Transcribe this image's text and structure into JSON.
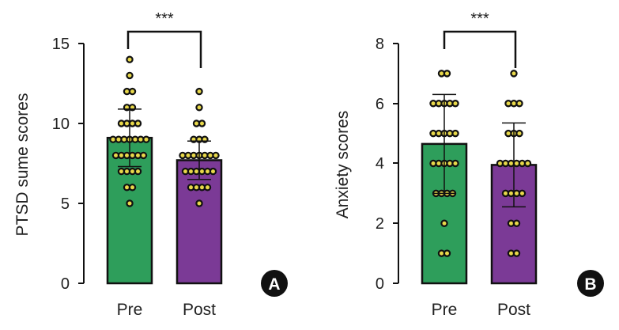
{
  "chart_data": [
    {
      "type": "bar",
      "panel": "A",
      "categories": [
        "Pre",
        "Post"
      ],
      "values": [
        9.1,
        7.7
      ],
      "error": [
        1.8,
        1.2
      ],
      "colors": [
        "#2e9e5b",
        "#7b3a96"
      ],
      "ylabel": "PTSD sume scores",
      "xlabel": "",
      "ylim": [
        0,
        15
      ],
      "yticks": [
        0,
        5,
        10,
        15
      ],
      "significance": "***",
      "points": [
        [
          5,
          6,
          6,
          7,
          7,
          7,
          7,
          8,
          8,
          8,
          8,
          8,
          8,
          9,
          9,
          9,
          9,
          9,
          9,
          9,
          10,
          10,
          10,
          10,
          11,
          11,
          12,
          12,
          13,
          14
        ],
        [
          5,
          6,
          6,
          6,
          6,
          7,
          7,
          7,
          7,
          7,
          7,
          8,
          8,
          8,
          8,
          8,
          8,
          8,
          9,
          9,
          9,
          10,
          10,
          11,
          12
        ]
      ]
    },
    {
      "type": "bar",
      "panel": "B",
      "categories": [
        "Pre",
        "Post"
      ],
      "values": [
        4.65,
        3.95
      ],
      "error": [
        1.65,
        1.4
      ],
      "colors": [
        "#2e9e5b",
        "#7b3a96"
      ],
      "ylabel": "Anxiety scores",
      "xlabel": "",
      "ylim": [
        0,
        8
      ],
      "yticks": [
        0,
        2,
        4,
        6,
        8
      ],
      "significance": "***",
      "points": [
        [
          1,
          1,
          2,
          3,
          3,
          3,
          3,
          4,
          4,
          4,
          4,
          4,
          5,
          5,
          5,
          5,
          5,
          6,
          6,
          6,
          6,
          6,
          7,
          7
        ],
        [
          1,
          1,
          2,
          2,
          3,
          3,
          3,
          3,
          4,
          4,
          4,
          4,
          4,
          4,
          5,
          5,
          5,
          6,
          6,
          6,
          7
        ]
      ]
    }
  ]
}
